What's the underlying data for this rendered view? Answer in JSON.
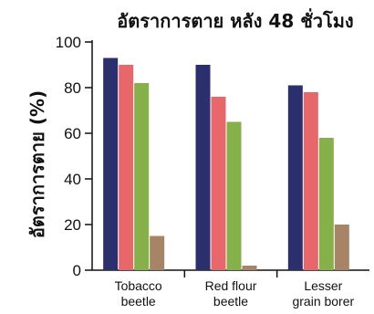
{
  "chart_data": {
    "type": "bar",
    "title": "อัตราการตาย หลัง 48 ชั่วโมง",
    "xlabel": "",
    "ylabel": "อัตราการตาย (%)",
    "ylim": [
      0,
      100
    ],
    "yticks": [
      "0",
      "20",
      "40",
      "60",
      "80",
      "100"
    ],
    "categories": [
      [
        "Tobacco",
        "beetle"
      ],
      [
        "Red flour",
        "beetle"
      ],
      [
        "Lesser",
        "grain borer"
      ]
    ],
    "series": [
      {
        "color": "#2b2f6e",
        "values": [
          93,
          90,
          81
        ]
      },
      {
        "color": "#e8676b",
        "values": [
          90,
          76,
          78
        ]
      },
      {
        "color": "#86b14a",
        "values": [
          82,
          65,
          58
        ]
      },
      {
        "color": "#a88466",
        "values": [
          15,
          2,
          20
        ]
      }
    ],
    "grid": false,
    "legend": "none"
  }
}
